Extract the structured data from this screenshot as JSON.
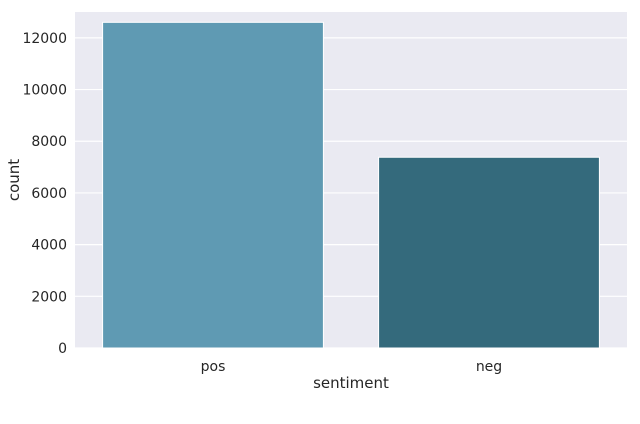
{
  "chart_data": {
    "type": "bar",
    "categories": [
      "pos",
      "neg"
    ],
    "values": [
      12600,
      7380
    ],
    "xlabel": "sentiment",
    "ylabel": "count",
    "ylim": [
      0,
      13000
    ],
    "yticks": [
      0,
      2000,
      4000,
      6000,
      8000,
      10000,
      12000
    ],
    "bar_colors": [
      "#5f9ab3",
      "#346a7c"
    ],
    "background": "#eaeaf2",
    "grid": true
  }
}
